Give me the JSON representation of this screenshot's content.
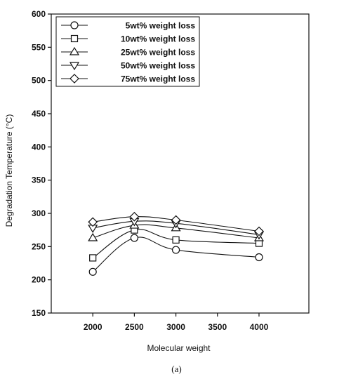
{
  "chart_data": {
    "type": "line",
    "title": "",
    "xlabel": "Molecular weight",
    "ylabel": "Degradation Temperature (°C)",
    "caption": "(a)",
    "xlim": [
      1500,
      4600
    ],
    "ylim": [
      150,
      600
    ],
    "x_ticks": [
      2000,
      2500,
      3000,
      3500,
      4000
    ],
    "y_ticks": [
      150,
      200,
      250,
      300,
      350,
      400,
      450,
      500,
      550,
      600
    ],
    "x": [
      2000,
      2500,
      3000,
      4000
    ],
    "grid": false,
    "legend_position": "top-left",
    "series": [
      {
        "name": "5wt% weight loss",
        "marker": "circle",
        "values": [
          212,
          263,
          245,
          234
        ]
      },
      {
        "name": "10wt% weight loss",
        "marker": "square",
        "values": [
          233,
          275,
          260,
          255
        ]
      },
      {
        "name": "25wt% weight loss",
        "marker": "triangle-up",
        "values": [
          263,
          282,
          278,
          263
        ]
      },
      {
        "name": "50wt% weight loss",
        "marker": "triangle-down",
        "values": [
          278,
          288,
          285,
          268
        ]
      },
      {
        "name": "75wt% weight loss",
        "marker": "diamond",
        "values": [
          287,
          295,
          290,
          273
        ]
      }
    ]
  }
}
